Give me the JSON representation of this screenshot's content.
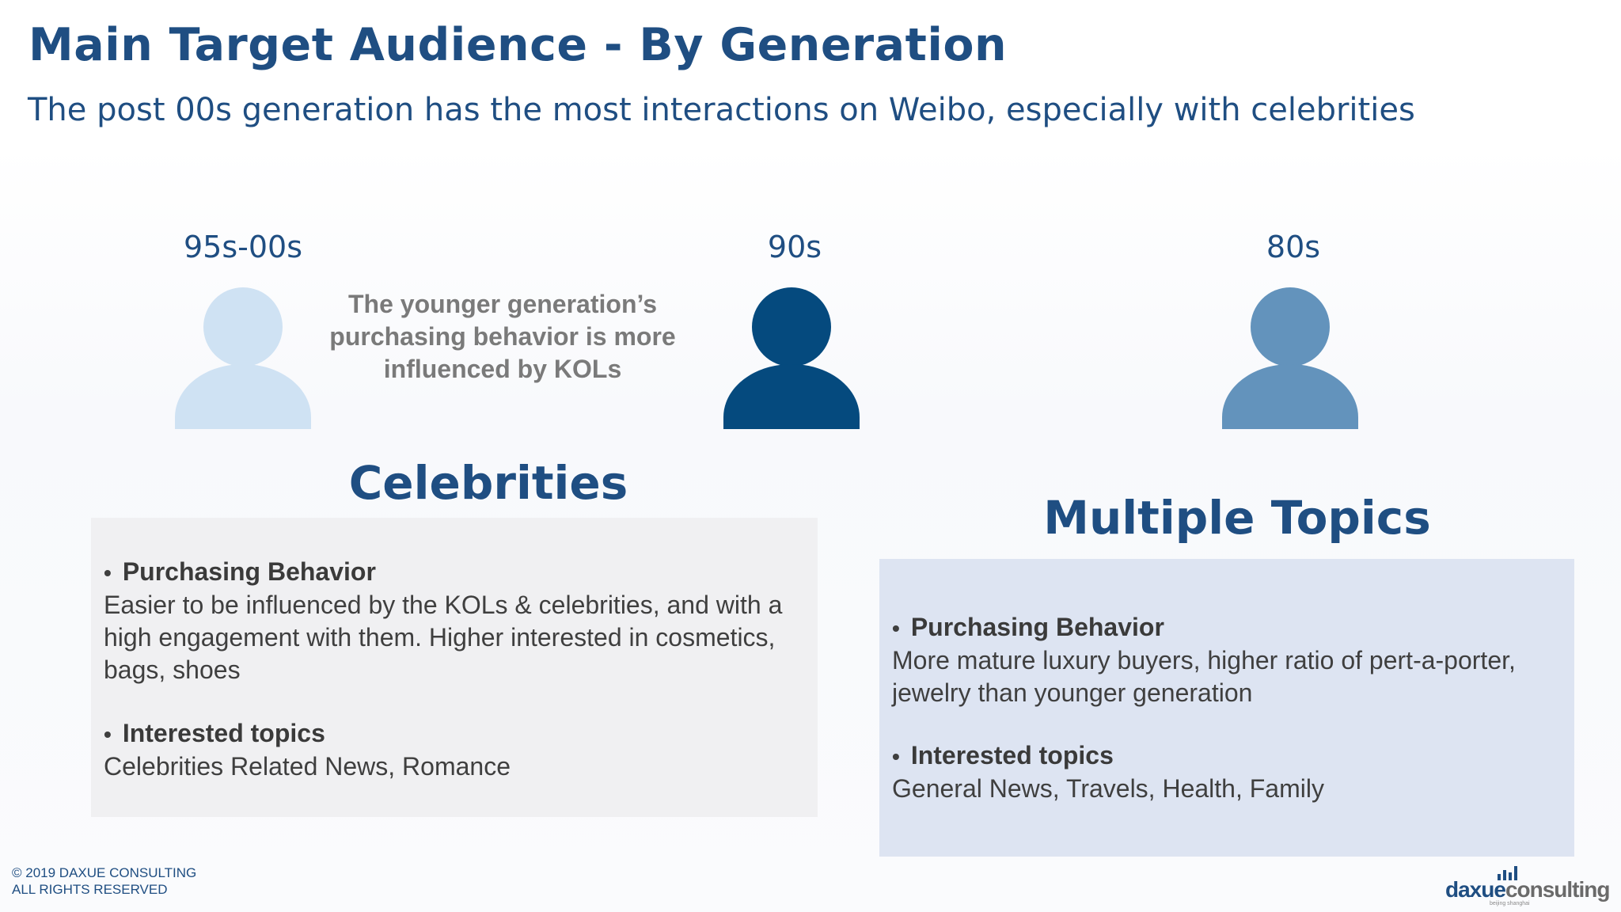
{
  "header": {
    "title": "Main Target Audience - By Generation",
    "subtitle": "The post 00s generation has the most interactions on Weibo, especially with celebrities"
  },
  "generations": [
    {
      "label": "95s-00s",
      "color": "#cfe2f3"
    },
    {
      "label": "90s",
      "color": "#054a7e"
    },
    {
      "label": "80s",
      "color": "#6393bc"
    }
  ],
  "kol_note": "The younger generation’s purchasing behavior is more influenced by KOLs",
  "groups": [
    {
      "heading": "Celebrities",
      "card_color": "#f0f0f2",
      "purchasing_title": "Purchasing Behavior",
      "purchasing_text": "Easier to be influenced by the KOLs & celebrities, and with a high engagement with them. Higher interested in cosmetics, bags, shoes",
      "topics_title": "Interested topics",
      "topics_text": "Celebrities Related News, Romance"
    },
    {
      "heading": "Multiple Topics",
      "card_color": "#dde4f2",
      "purchasing_title": "Purchasing Behavior",
      "purchasing_text": "More mature luxury buyers, higher ratio of pert-a-porter, jewelry than younger generation",
      "topics_title": "Interested topics",
      "topics_text": "General News, Travels, Health, Family"
    }
  ],
  "footer": {
    "copyright_line1": "© 2019 DAXUE CONSULTING",
    "copyright_line2": "ALL RIGHTS RESERVED",
    "logo_part1": "daxue",
    "logo_part2": "consulting",
    "logo_sub": "beijing shanghai",
    "logo_color1": "#1f4e82",
    "logo_color2": "#6a6a6a"
  },
  "bullet": "•"
}
